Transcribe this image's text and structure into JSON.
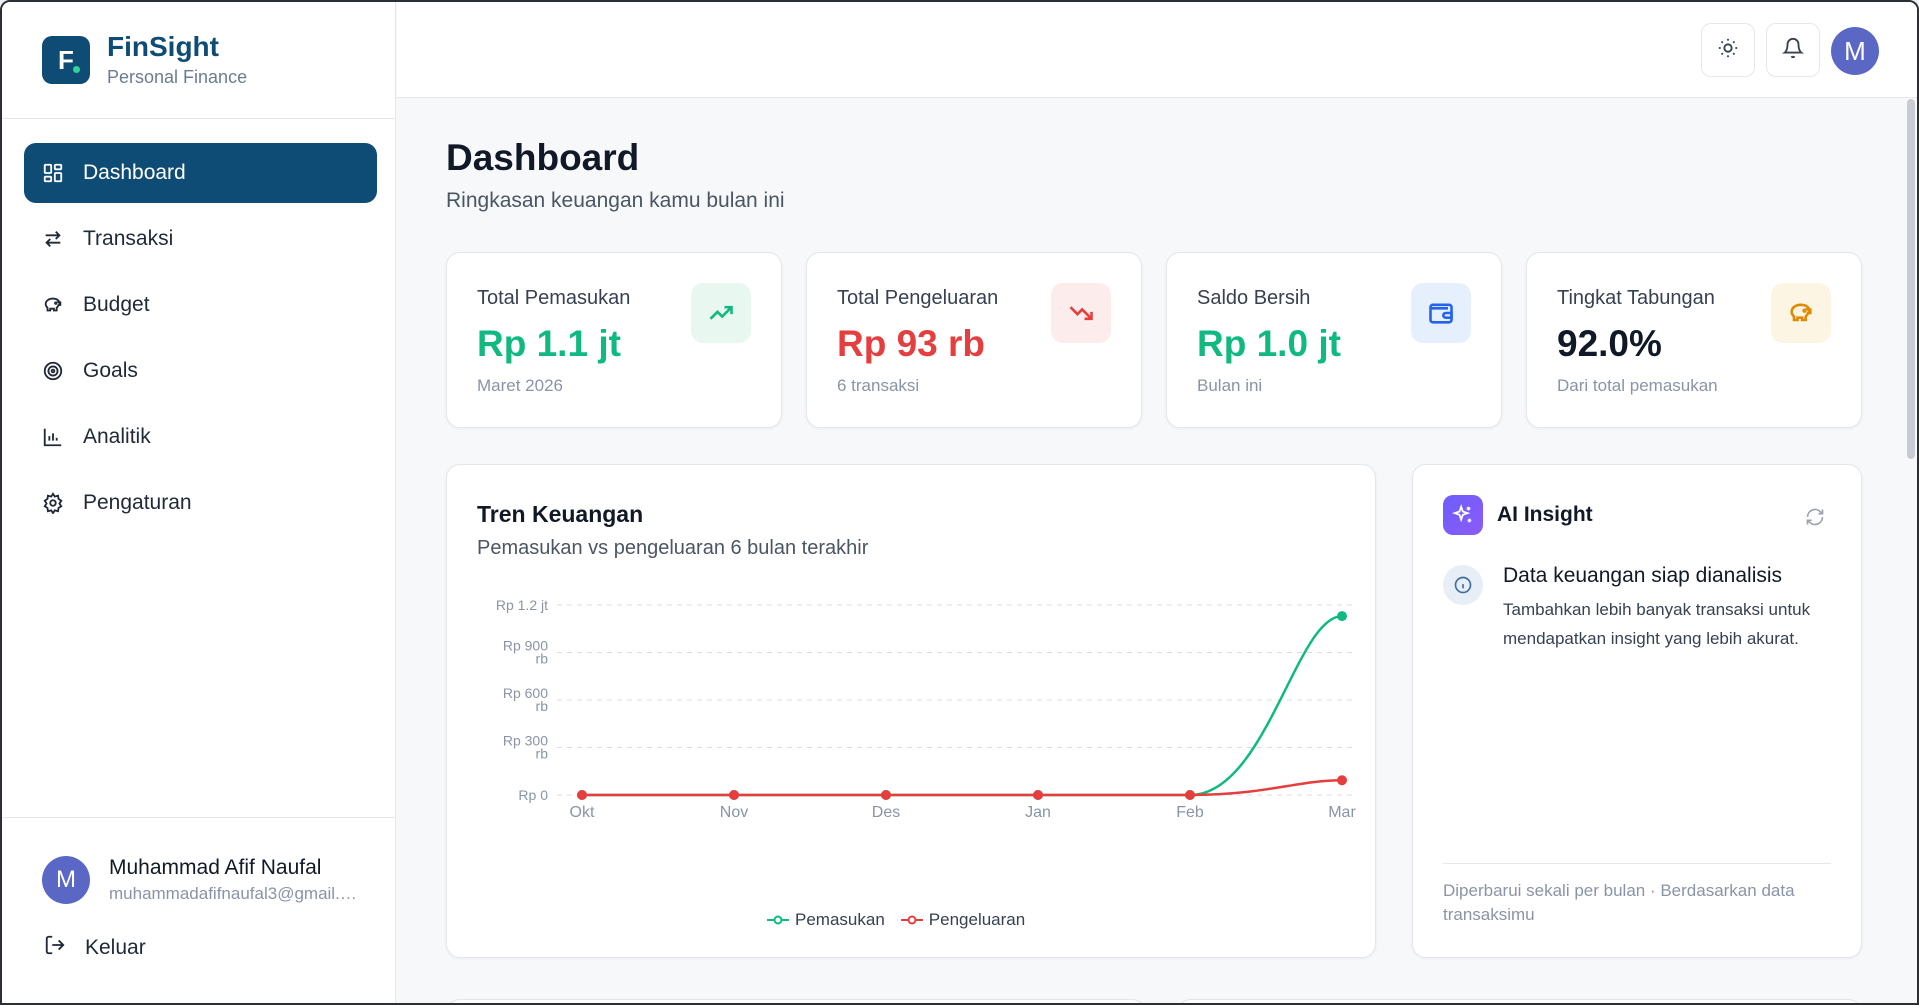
{
  "brand": {
    "name": "FinSight",
    "subtitle": "Personal Finance",
    "logo_letter": "F"
  },
  "sidebar": {
    "items": [
      {
        "label": "Dashboard",
        "icon": "dashboard-grid-icon",
        "active": true
      },
      {
        "label": "Transaksi",
        "icon": "arrows-swap-icon"
      },
      {
        "label": "Budget",
        "icon": "piggy-bank-icon"
      },
      {
        "label": "Goals",
        "icon": "target-icon"
      },
      {
        "label": "Analitik",
        "icon": "bar-chart-icon"
      },
      {
        "label": "Pengaturan",
        "icon": "gear-icon"
      }
    ],
    "user": {
      "initial": "M",
      "name": "Muhammad Afif Naufal",
      "email": "muhammadafifnaufal3@gmail.com"
    },
    "logout_label": "Keluar"
  },
  "topbar": {
    "avatar_initial": "M",
    "icons": [
      "sun-icon",
      "bell-icon"
    ]
  },
  "page": {
    "title": "Dashboard",
    "subtitle": "Ringkasan keuangan kamu bulan ini"
  },
  "stats": [
    {
      "label": "Total Pemasukan",
      "value": "Rp 1.1 jt",
      "foot": "Maret 2026",
      "value_color": "#10b981",
      "icon": "trend-up-icon",
      "icon_color": "#10b981",
      "icon_bg": "#e8f8f1"
    },
    {
      "label": "Total Pengeluaran",
      "value": "Rp 93 rb",
      "foot": "6 transaksi",
      "value_color": "#e53e3e",
      "icon": "trend-down-icon",
      "icon_color": "#e53e3e",
      "icon_bg": "#fdecec"
    },
    {
      "label": "Saldo Bersih",
      "value": "Rp 1.0 jt",
      "foot": "Bulan ini",
      "value_color": "#10b981",
      "icon": "wallet-icon",
      "icon_color": "#2563eb",
      "icon_bg": "#e6effc"
    },
    {
      "label": "Tingkat Tabungan",
      "value": "92.0%",
      "foot": "Dari total pemasukan",
      "value_color": "#111827",
      "icon": "piggy-bank-icon",
      "icon_color": "#e08a00",
      "icon_bg": "#fdf5e3"
    }
  ],
  "chart": {
    "title": "Tren Keuangan",
    "subtitle": "Pemasukan vs pengeluaran 6 bulan terakhir"
  },
  "chart_data": {
    "type": "line",
    "title": "Tren Keuangan",
    "subtitle": "Pemasukan vs pengeluaran 6 bulan terakhir",
    "categories": [
      "Okt",
      "Nov",
      "Des",
      "Jan",
      "Feb",
      "Mar"
    ],
    "y_ticks": [
      {
        "value": 0,
        "label": [
          "Rp 0"
        ]
      },
      {
        "value": 300000,
        "label": [
          "Rp 300",
          "rb"
        ]
      },
      {
        "value": 600000,
        "label": [
          "Rp 600",
          "rb"
        ]
      },
      {
        "value": 900000,
        "label": [
          "Rp 900",
          "rb"
        ]
      },
      {
        "value": 1200000,
        "label": [
          "Rp 1.2 jt"
        ]
      }
    ],
    "ylim": [
      0,
      1200000
    ],
    "grid": true,
    "legend": "bottom-center",
    "series": [
      {
        "name": "Pemasukan",
        "color": "#10b981",
        "values": [
          0,
          0,
          0,
          0,
          0,
          1130000
        ]
      },
      {
        "name": "Pengeluaran",
        "color": "#e53e3e",
        "values": [
          0,
          0,
          0,
          0,
          0,
          93000
        ]
      }
    ]
  },
  "ai_insight": {
    "title": "AI Insight",
    "message_title": "Data keuangan siap dianalisis",
    "message_body": "Tambahkan lebih banyak transaksi untuk mendapatkan insight yang lebih akurat.",
    "footer": "Diperbarui sekali per bulan · Berdasarkan data transaksimu"
  }
}
